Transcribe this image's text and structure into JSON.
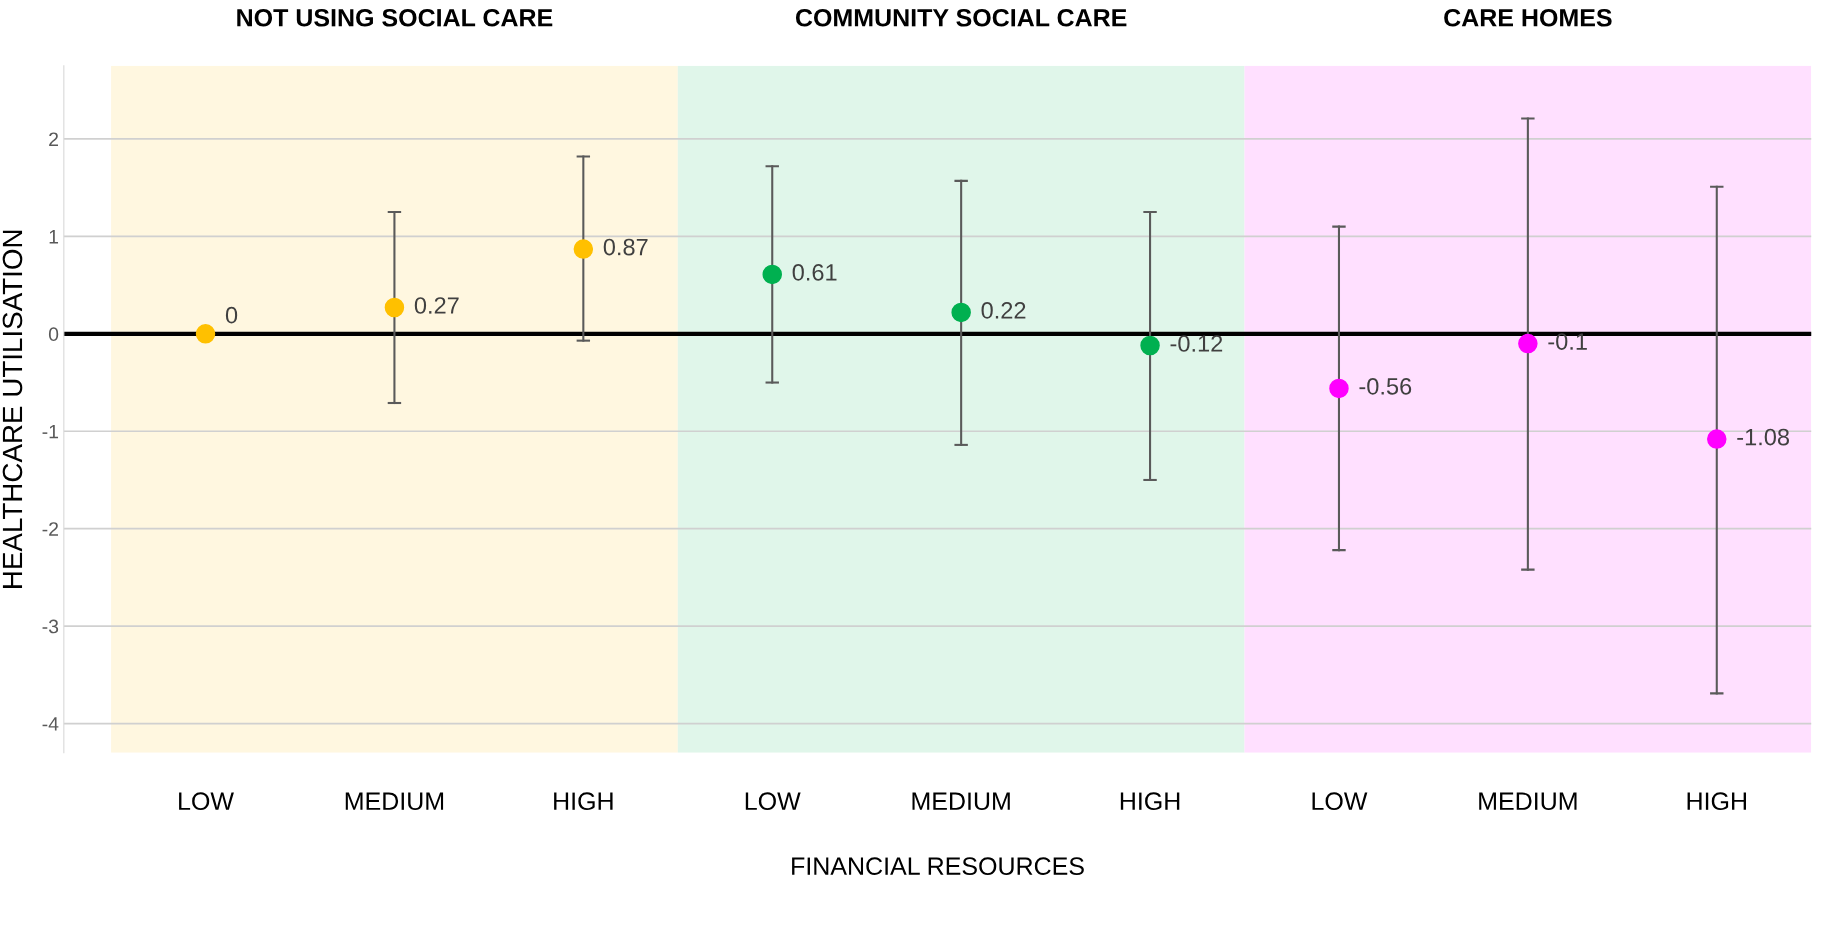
{
  "chart_data": {
    "type": "scatter",
    "xlabel": "FINANCIAL RESOURCES",
    "ylabel": "HEALTHCARE UTILISATION",
    "categories": [
      "LOW",
      "MEDIUM",
      "HIGH",
      "LOW",
      "MEDIUM",
      "HIGH",
      "LOW",
      "MEDIUM",
      "HIGH"
    ],
    "series": [
      {
        "color": "#ffc000",
        "values": [
          0,
          0.27,
          0.87,
          null,
          null,
          null,
          null,
          null,
          null
        ],
        "errors": [
          null,
          [
            -0.71,
            1.25
          ],
          [
            -0.07,
            1.82
          ],
          null,
          null,
          null,
          null,
          null,
          null
        ]
      },
      {
        "color": "#00b050",
        "values": [
          null,
          null,
          null,
          0.61,
          0.22,
          -0.12,
          null,
          null,
          null
        ],
        "errors": [
          null,
          null,
          null,
          [
            -0.5,
            1.72
          ],
          [
            -1.14,
            1.57
          ],
          [
            -1.5,
            1.25
          ],
          null,
          null,
          null
        ]
      },
      {
        "color": "#ff00ff",
        "values": [
          null,
          null,
          null,
          null,
          null,
          null,
          -0.56,
          -0.1,
          -1.08
        ],
        "errors": [
          null,
          null,
          null,
          null,
          null,
          null,
          [
            -2.22,
            1.1
          ],
          [
            -2.42,
            2.21
          ],
          [
            -3.69,
            1.51
          ]
        ]
      }
    ],
    "ylim": [
      -4.3,
      2.75
    ],
    "yticks": [
      -4,
      -3,
      -2,
      -1,
      0,
      1,
      2
    ],
    "annotations": [
      "NOT USING SOCIAL CARE",
      "COMMUNITY SOCIAL CARE",
      "CARE HOMES"
    ],
    "ref_lines": [
      {
        "axis": "y",
        "value": 0,
        "color": "#000000"
      }
    ],
    "data_labels": true,
    "grid": "y",
    "legend": false,
    "marker": "circle"
  }
}
